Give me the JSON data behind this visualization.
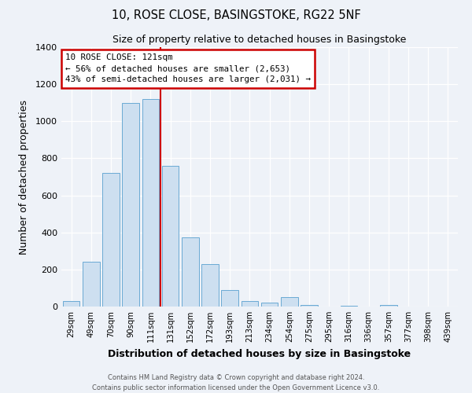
{
  "title": "10, ROSE CLOSE, BASINGSTOKE, RG22 5NF",
  "subtitle": "Size of property relative to detached houses in Basingstoke",
  "xlabel": "Distribution of detached houses by size in Basingstoke",
  "ylabel": "Number of detached properties",
  "bar_labels": [
    "29sqm",
    "49sqm",
    "70sqm",
    "90sqm",
    "111sqm",
    "131sqm",
    "152sqm",
    "172sqm",
    "193sqm",
    "213sqm",
    "234sqm",
    "254sqm",
    "275sqm",
    "295sqm",
    "316sqm",
    "336sqm",
    "357sqm",
    "377sqm",
    "398sqm",
    "439sqm"
  ],
  "bar_heights": [
    30,
    240,
    720,
    1100,
    1120,
    760,
    375,
    230,
    90,
    30,
    20,
    50,
    10,
    0,
    5,
    0,
    10,
    0,
    0,
    0
  ],
  "bar_color": "#cddff0",
  "bar_edge_color": "#6aaad4",
  "annotation_title": "10 ROSE CLOSE: 121sqm",
  "annotation_line1": "← 56% of detached houses are smaller (2,653)",
  "annotation_line2": "43% of semi-detached houses are larger (2,031) →",
  "annotation_box_color": "#ffffff",
  "annotation_box_edge_color": "#cc0000",
  "vline_color": "#cc0000",
  "vline_x_index": 4.5,
  "ylim": [
    0,
    1400
  ],
  "yticks": [
    0,
    200,
    400,
    600,
    800,
    1000,
    1200,
    1400
  ],
  "footer1": "Contains HM Land Registry data © Crown copyright and database right 2024.",
  "footer2": "Contains public sector information licensed under the Open Government Licence v3.0.",
  "bg_color": "#eef2f8",
  "plot_bg_color": "#eef2f8",
  "grid_color": "#ffffff"
}
